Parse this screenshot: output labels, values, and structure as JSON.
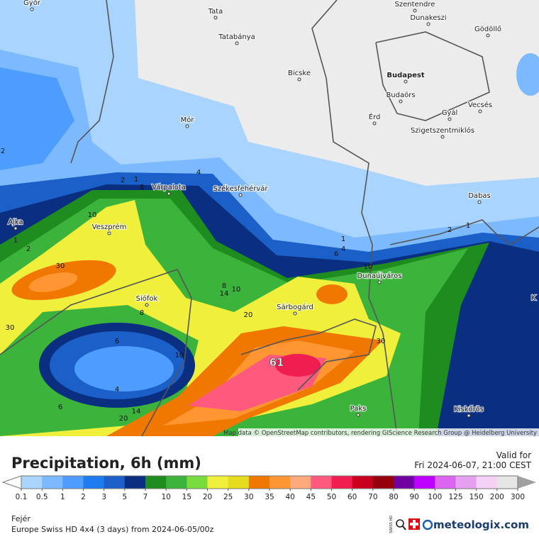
{
  "map": {
    "cities": [
      "Győr",
      "Tata",
      "Tatabánya",
      "Szentendre",
      "Dunakeszi",
      "Gödöllő",
      "Bicske",
      "Budapest",
      "Budaörs",
      "Mór",
      "Érd",
      "Gyál",
      "Vecsés",
      "Szigetszentmiklós",
      "Várpalota",
      "Székesfehérvár",
      "Dabas",
      "Ajka",
      "Veszprém",
      "Dunaújváros",
      "Siófok",
      "Sárbogárd",
      "Paks",
      "Kiskőrös",
      "K"
    ],
    "contour_labels": [
      2,
      2,
      1,
      8,
      4,
      10,
      1,
      2,
      30,
      30,
      8,
      6,
      4,
      6,
      20,
      14,
      10,
      8,
      14,
      10,
      20,
      1,
      4,
      6,
      10,
      30,
      2,
      1
    ],
    "peak": 61,
    "attribution": "Map data © OpenStreetMap contributors, rendering GIScience Research Group @ Heidelberg University"
  },
  "legend": {
    "title": "Precipitation, 6h (mm)",
    "valid_label": "Valid for",
    "valid_time": "Fri 2024-06-07, 21:00 CEST",
    "ticks": [
      0.1,
      0.5,
      1,
      2,
      3,
      5,
      7,
      10,
      15,
      20,
      25,
      30,
      35,
      40,
      45,
      50,
      60,
      70,
      80,
      90,
      100,
      125,
      150,
      200,
      300
    ],
    "colors": [
      "#a8d4ff",
      "#7db9ff",
      "#4d9dff",
      "#1e7cf0",
      "#1b5fc8",
      "#0a2f80",
      "#1e8c1e",
      "#3cb43c",
      "#78dc3c",
      "#f0f03c",
      "#e6dc1e",
      "#f07800",
      "#ff9632",
      "#ffaa7d",
      "#ff5a7d",
      "#f01e50",
      "#c8001e",
      "#96000a",
      "#6e00a0",
      "#be00ff",
      "#dc64f0",
      "#e6a0f0",
      "#f5d2f5",
      "#e6e6e6"
    ],
    "under_color": "#ffffff",
    "over_color": "#a0a0a0"
  },
  "footer": {
    "location": "Fejér",
    "model": "Europe Swiss HD 4x4 (3 days) from  2024-06-05/00z",
    "badge": "SWISS HD",
    "brand": "meteologix.com"
  }
}
